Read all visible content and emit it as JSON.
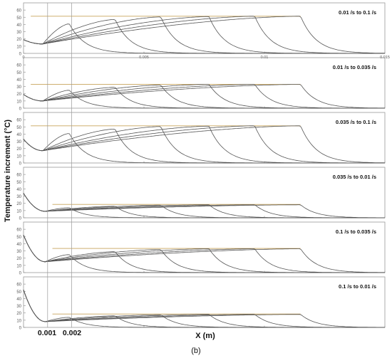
{
  "figure": {
    "caption": "(b)",
    "ylabel": "Temperature increment (°C)",
    "xlabel": "X (m)",
    "markers": [
      {
        "x": 0.001,
        "label": "0.001"
      },
      {
        "x": 0.002,
        "label": "0.002"
      }
    ],
    "colors": {
      "axis": "#999999",
      "curve": "#555555",
      "reference": "#c7a35a",
      "marker_line": "#9a9a9a"
    }
  },
  "chart_data": [
    {
      "type": "line",
      "annotation": "0.01 /s to 0.1 /s",
      "xlim": [
        0,
        0.015
      ],
      "ylim": [
        0,
        70
      ],
      "yticks": [
        0,
        10,
        20,
        30,
        40,
        50,
        60
      ],
      "xticks": [
        0,
        0.005,
        0.01,
        0.015
      ],
      "xtick_labels": [
        "0",
        "0.005",
        "0.01",
        "0.015"
      ],
      "initial": 19,
      "min": 13,
      "min_x": 0.0008,
      "peak_times_x": [
        0.0019,
        0.0038,
        0.0057,
        0.0077,
        0.0096,
        0.0115
      ],
      "peaks": [
        41,
        47,
        50.5,
        51,
        51.5,
        51.5
      ],
      "reference_y": 51.5,
      "reference_x": [
        0.0003,
        0.0115
      ]
    },
    {
      "type": "line",
      "annotation": "0.01 /s to 0.035 /s",
      "xlim": [
        0,
        0.015
      ],
      "ylim": [
        0,
        70
      ],
      "yticks": [
        0,
        10,
        20,
        30,
        40,
        50,
        60
      ],
      "xticks": [
        0,
        0.005,
        0.01,
        0.015
      ],
      "xtick_labels": [
        "",
        "",
        "",
        ""
      ],
      "initial": 19,
      "min": 10,
      "min_x": 0.0008,
      "peak_times_x": [
        0.0019,
        0.0038,
        0.0057,
        0.0077,
        0.0096,
        0.0115
      ],
      "peaks": [
        25,
        29,
        32,
        33,
        33,
        33
      ],
      "reference_y": 33,
      "reference_x": [
        0.0003,
        0.0115
      ]
    },
    {
      "type": "line",
      "annotation": "0.035 /s to 0.1 /s",
      "xlim": [
        0,
        0.015
      ],
      "ylim": [
        0,
        70
      ],
      "yticks": [
        0,
        10,
        20,
        30,
        40,
        50,
        60
      ],
      "xticks": [
        0,
        0.005,
        0.01,
        0.015
      ],
      "xtick_labels": [
        "",
        "",
        "",
        ""
      ],
      "initial": 33,
      "min": 17,
      "min_x": 0.0008,
      "peak_times_x": [
        0.0019,
        0.0038,
        0.0057,
        0.0077,
        0.0096,
        0.0115
      ],
      "peaks": [
        41,
        47,
        50.5,
        51,
        51.5,
        51.5
      ],
      "reference_y": 51.5,
      "reference_x": [
        0.0003,
        0.0115
      ]
    },
    {
      "type": "line",
      "annotation": "0.035 /s to 0.01 /s",
      "xlim": [
        0,
        0.015
      ],
      "ylim": [
        0,
        70
      ],
      "yticks": [
        0,
        10,
        20,
        30,
        40,
        50,
        60
      ],
      "xticks": [
        0,
        0.005,
        0.01,
        0.015
      ],
      "xtick_labels": [
        "",
        "",
        "",
        ""
      ],
      "initial": 34,
      "min": 9,
      "min_x": 0.0009,
      "peak_times_x": [
        0.0019,
        0.0038,
        0.0057,
        0.0077,
        0.0096,
        0.0115
      ],
      "peaks": [
        14,
        16,
        17.5,
        18,
        18,
        18
      ],
      "reference_y": 18.5,
      "reference_x": [
        0.0012,
        0.0115
      ]
    },
    {
      "type": "line",
      "annotation": "0.1 /s to 0.035 /s",
      "xlim": [
        0,
        0.015
      ],
      "ylim": [
        0,
        70
      ],
      "yticks": [
        0,
        10,
        20,
        30,
        40,
        50,
        60
      ],
      "xticks": [
        0,
        0.005,
        0.01,
        0.015
      ],
      "xtick_labels": [
        "",
        "",
        "",
        ""
      ],
      "initial": 52,
      "min": 15,
      "min_x": 0.0009,
      "peak_times_x": [
        0.0019,
        0.0038,
        0.0057,
        0.0077,
        0.0096,
        0.0115
      ],
      "peaks": [
        25,
        29,
        32,
        33,
        33,
        33
      ],
      "reference_y": 33.5,
      "reference_x": [
        0.0012,
        0.0115
      ]
    },
    {
      "type": "line",
      "annotation": "0.1 /s to 0.01 /s",
      "xlim": [
        0,
        0.015
      ],
      "ylim": [
        0,
        70
      ],
      "yticks": [
        0,
        10,
        20,
        30,
        40,
        50,
        60
      ],
      "xticks": [
        0,
        0.005,
        0.01,
        0.015
      ],
      "xtick_labels": [
        "",
        "",
        "",
        ""
      ],
      "initial": 52,
      "min": 8,
      "min_x": 0.0009,
      "peak_times_x": [
        0.0019,
        0.0038,
        0.0057,
        0.0077,
        0.0096,
        0.0115
      ],
      "peaks": [
        14,
        16,
        17.5,
        18,
        18,
        18
      ],
      "reference_y": 18.5,
      "reference_x": [
        0.0012,
        0.0115
      ]
    }
  ]
}
